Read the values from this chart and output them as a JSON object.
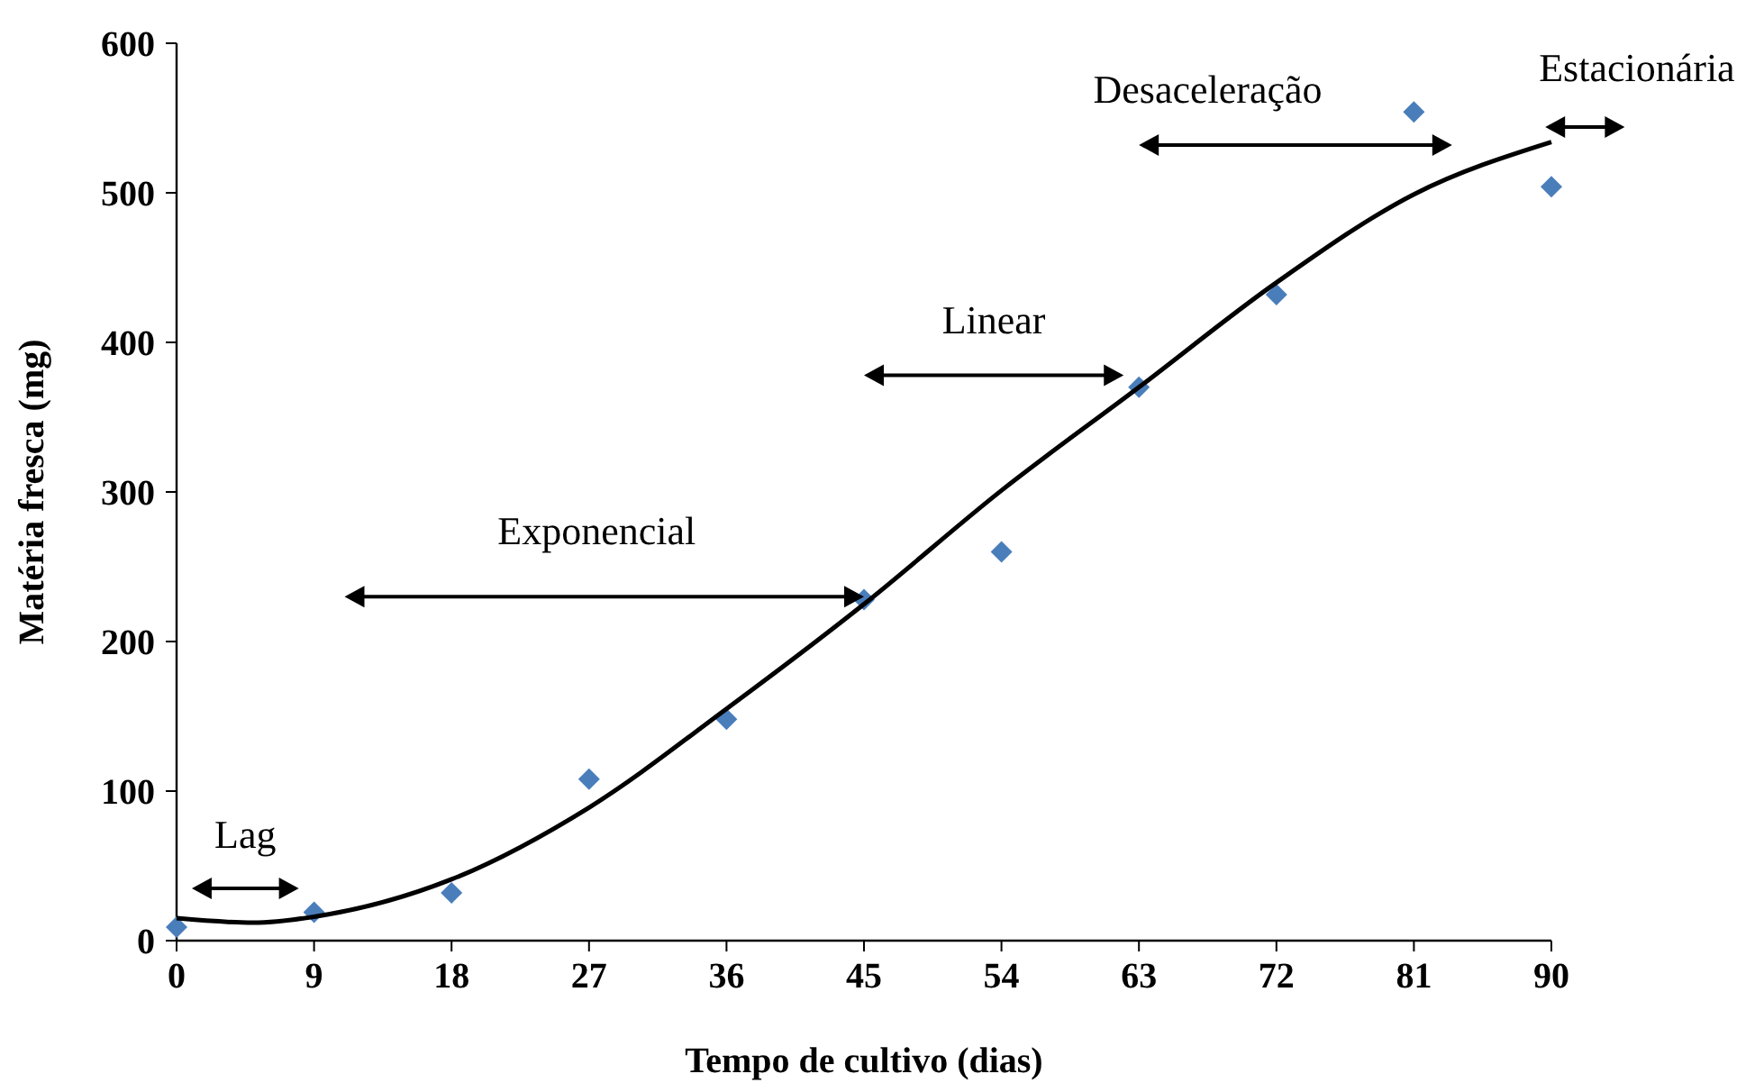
{
  "chart_data": {
    "type": "scatter",
    "xlabel": "Tempo de cultivo (dias)",
    "ylabel": "Matéria fresca (mg)",
    "xlim": [
      0,
      90
    ],
    "xticks": [
      0,
      9,
      18,
      27,
      36,
      45,
      54,
      63,
      72,
      81,
      90
    ],
    "ylim": [
      0,
      600
    ],
    "yticks": [
      0,
      100,
      200,
      300,
      400,
      500,
      600
    ],
    "grid": false,
    "series": [
      {
        "color": "#4a7ebb",
        "marker": "diamond",
        "x": [
          0,
          9,
          18,
          27,
          36,
          45,
          54,
          63,
          72,
          81,
          90
        ],
        "values": [
          9,
          19,
          32,
          108,
          148,
          228,
          260,
          370,
          432,
          554,
          504
        ]
      },
      {
        "type": "line",
        "color": "#000000",
        "marker": "none",
        "line_style": "solid",
        "x": [
          0,
          5,
          9,
          18,
          27,
          36,
          45,
          54,
          63,
          72,
          81,
          90
        ],
        "values": [
          15,
          12,
          16,
          41,
          89,
          155,
          225,
          301,
          370,
          440,
          499,
          534
        ]
      }
    ],
    "annotations": [
      "Lag",
      "Exponencial",
      "Linear",
      "Desaceleração",
      "Estacionária"
    ]
  }
}
